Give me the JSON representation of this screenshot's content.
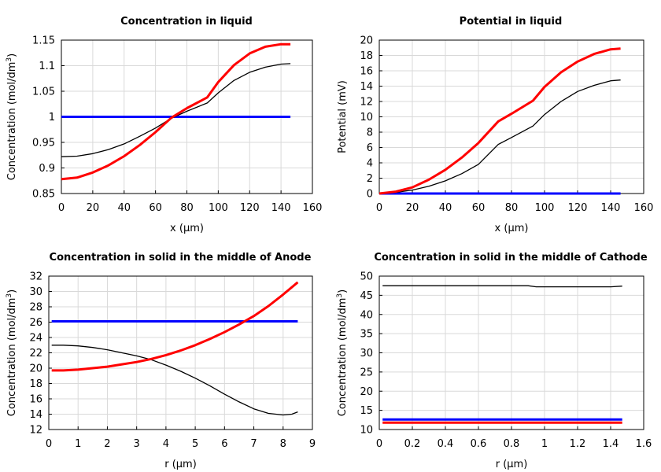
{
  "chart_data": [
    {
      "type": "line",
      "title": "Concentration in liquid",
      "xlabel": "x (µm)",
      "ylabel_text": "Concentration (mol/dm",
      "ylabel_sup": "3",
      "ylabel_close": ")",
      "xlim": [
        0,
        160
      ],
      "ylim": [
        0.85,
        1.15
      ],
      "xticks": [
        "0",
        "20",
        "40",
        "60",
        "80",
        "100",
        "120",
        "140",
        "160"
      ],
      "yticks": [
        "0.85",
        "0.9",
        "0.95",
        "1",
        "1.05",
        "1.1",
        "1.15"
      ],
      "grid": true,
      "series": [
        {
          "color": "#0000ff",
          "width": 3,
          "x": [
            0,
            146
          ],
          "y": [
            1.0,
            1.0
          ]
        },
        {
          "color": "#000000",
          "width": 1.3,
          "x": [
            0,
            10,
            20,
            30,
            40,
            50,
            60,
            70,
            80,
            93,
            100,
            110,
            120,
            130,
            140,
            146
          ],
          "y": [
            0.922,
            0.923,
            0.928,
            0.936,
            0.947,
            0.962,
            0.978,
            0.997,
            1.011,
            1.027,
            1.047,
            1.071,
            1.087,
            1.097,
            1.103,
            1.104
          ]
        },
        {
          "color": "#ff0000",
          "width": 3,
          "x": [
            0,
            10,
            20,
            30,
            40,
            50,
            60,
            70,
            80,
            93,
            100,
            110,
            120,
            130,
            140,
            146
          ],
          "y": [
            0.878,
            0.881,
            0.891,
            0.905,
            0.923,
            0.945,
            0.97,
            0.998,
            1.017,
            1.038,
            1.068,
            1.101,
            1.124,
            1.137,
            1.142,
            1.142
          ]
        }
      ]
    },
    {
      "type": "line",
      "title": "Potential in liquid",
      "xlabel": "x (µm)",
      "ylabel_text": "Potential (mV)",
      "ylabel_sup": "",
      "ylabel_close": "",
      "xlim": [
        0,
        160
      ],
      "ylim": [
        0,
        20
      ],
      "xticks": [
        "0",
        "20",
        "40",
        "60",
        "80",
        "100",
        "120",
        "140",
        "160"
      ],
      "yticks": [
        "0",
        "2",
        "4",
        "6",
        "8",
        "10",
        "12",
        "14",
        "16",
        "18",
        "20"
      ],
      "grid": true,
      "series": [
        {
          "color": "#0000ff",
          "width": 3,
          "x": [
            0,
            146
          ],
          "y": [
            0,
            0
          ]
        },
        {
          "color": "#000000",
          "width": 1.3,
          "x": [
            0,
            10,
            20,
            30,
            40,
            50,
            60,
            72,
            80,
            93,
            100,
            110,
            120,
            130,
            140,
            146
          ],
          "y": [
            0,
            0.15,
            0.45,
            0.95,
            1.65,
            2.6,
            3.8,
            6.4,
            7.3,
            8.8,
            10.3,
            12.0,
            13.3,
            14.1,
            14.7,
            14.8
          ]
        },
        {
          "color": "#ff0000",
          "width": 3,
          "x": [
            0,
            10,
            20,
            30,
            40,
            50,
            60,
            72,
            80,
            93,
            100,
            110,
            120,
            130,
            140,
            146
          ],
          "y": [
            0,
            0.25,
            0.8,
            1.8,
            3.1,
            4.7,
            6.6,
            9.4,
            10.4,
            12.1,
            13.9,
            15.8,
            17.2,
            18.2,
            18.8,
            18.9
          ]
        }
      ]
    },
    {
      "type": "line",
      "title": "Concentration in solid in the middle of Anode",
      "xlabel": "r (µm)",
      "ylabel_text": "Concentration (mol/dm",
      "ylabel_sup": "3",
      "ylabel_close": ")",
      "xlim": [
        0,
        9
      ],
      "ylim": [
        12,
        32
      ],
      "xticks": [
        "0",
        "1",
        "2",
        "3",
        "4",
        "5",
        "6",
        "7",
        "8",
        "9"
      ],
      "yticks": [
        "12",
        "14",
        "16",
        "18",
        "20",
        "22",
        "24",
        "26",
        "28",
        "30",
        "32"
      ],
      "grid": true,
      "series": [
        {
          "color": "#0000ff",
          "width": 3,
          "x": [
            0.1,
            8.5
          ],
          "y": [
            26.1,
            26.1
          ]
        },
        {
          "color": "#000000",
          "width": 1.3,
          "x": [
            0.1,
            0.5,
            1,
            1.5,
            2,
            2.5,
            3,
            3.5,
            4,
            4.5,
            5,
            5.5,
            6,
            6.5,
            7,
            7.5,
            8,
            8.3,
            8.5
          ],
          "y": [
            23.0,
            23.0,
            22.9,
            22.7,
            22.4,
            22.0,
            21.6,
            21.1,
            20.4,
            19.6,
            18.7,
            17.7,
            16.6,
            15.6,
            14.7,
            14.1,
            13.9,
            14.0,
            14.3
          ]
        },
        {
          "color": "#ff0000",
          "width": 3,
          "x": [
            0.1,
            0.5,
            1,
            1.5,
            2,
            2.5,
            3,
            3.5,
            4,
            4.5,
            5,
            5.5,
            6,
            6.5,
            7,
            7.5,
            8,
            8.5
          ],
          "y": [
            19.7,
            19.7,
            19.8,
            20.0,
            20.2,
            20.5,
            20.8,
            21.2,
            21.7,
            22.3,
            23.0,
            23.8,
            24.7,
            25.7,
            26.8,
            28.1,
            29.6,
            31.2
          ]
        }
      ]
    },
    {
      "type": "line",
      "title": "Concentration in solid in the middle of Cathode",
      "xlabel": "r (µm)",
      "ylabel_text": "Concentration (mol/dm",
      "ylabel_sup": "3",
      "ylabel_close": ")",
      "xlim": [
        0,
        1.6
      ],
      "ylim": [
        10,
        50
      ],
      "xticks": [
        "0",
        "0.2",
        "0.4",
        "0.6",
        "0.8",
        "1",
        "1.2",
        "1.4",
        "1.6"
      ],
      "yticks": [
        "10",
        "15",
        "20",
        "25",
        "30",
        "35",
        "40",
        "45",
        "50"
      ],
      "grid": true,
      "series": [
        {
          "color": "#0000ff",
          "width": 3,
          "x": [
            0.02,
            1.47
          ],
          "y": [
            12.6,
            12.6
          ]
        },
        {
          "color": "#ff0000",
          "width": 3,
          "x": [
            0.02,
            1.47
          ],
          "y": [
            11.8,
            11.8
          ]
        },
        {
          "color": "#000000",
          "width": 1.3,
          "x": [
            0.02,
            0.5,
            0.9,
            0.95,
            1.0,
            1.2,
            1.4,
            1.47
          ],
          "y": [
            47.5,
            47.5,
            47.5,
            47.2,
            47.2,
            47.2,
            47.2,
            47.4
          ]
        }
      ]
    }
  ]
}
